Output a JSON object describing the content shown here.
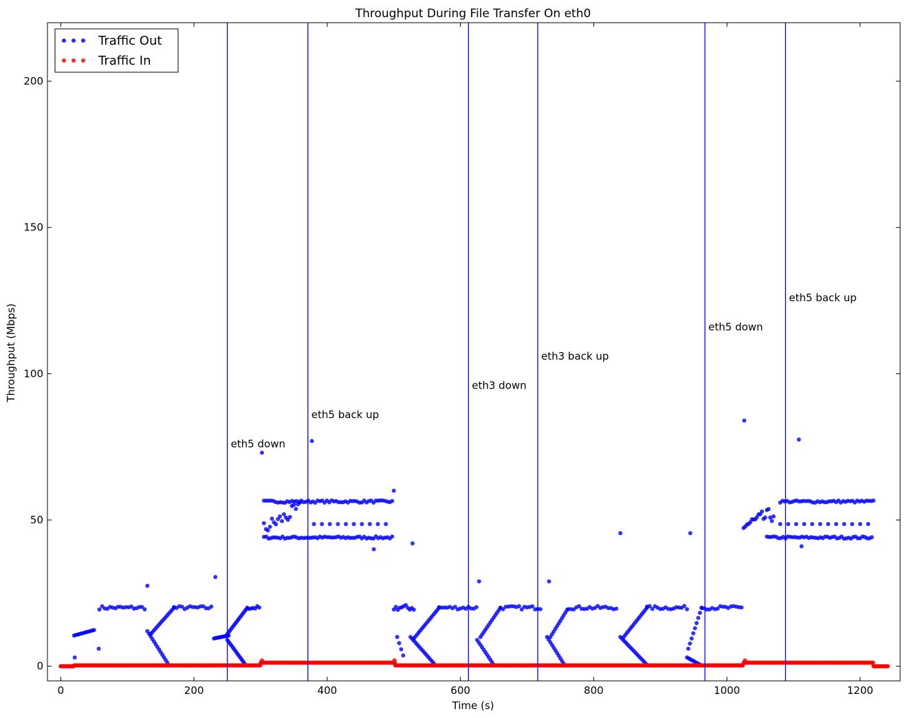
{
  "chart_data": {
    "type": "scatter",
    "title": "Throughput During File Transfer On eth0",
    "xlabel": "Time (s)",
    "ylabel": "Throughput (Mbps)",
    "xlim": [
      -20,
      1260
    ],
    "ylim": [
      -5,
      220
    ],
    "x_ticks": [
      0,
      200,
      400,
      600,
      800,
      1000,
      1200
    ],
    "y_ticks": [
      0,
      50,
      100,
      150,
      200
    ],
    "grid": false,
    "legend_position": "top-left",
    "colors": {
      "traffic_out": "#0000ff",
      "traffic_in": "#ff0000",
      "event_line": "#0000ff"
    },
    "series": [
      {
        "name": "Traffic Out",
        "color": "#0000ff",
        "segments": [
          {
            "x_start": 0,
            "x_end": 18,
            "step": 3,
            "y": 0
          },
          {
            "x_start": 20,
            "x_end": 52,
            "step": 2.5,
            "y_start": 10.5,
            "y_end": 12.5
          },
          {
            "x_start": 58,
            "x_end": 128,
            "step": 4,
            "y": 20,
            "jitter": 0.6
          },
          {
            "x_start": 58,
            "x_end": 128,
            "step": 5,
            "y": 0.3
          },
          {
            "x_start": 130,
            "x_end": 162,
            "step": 2.5,
            "y_start": 12,
            "y_end": 0.5
          },
          {
            "x_start": 135,
            "x_end": 170,
            "step": 2.5,
            "y_start": 11,
            "y_end": 20
          },
          {
            "x_start": 170,
            "x_end": 228,
            "step": 4,
            "y": 20,
            "jitter": 0.6
          },
          {
            "x_start": 162,
            "x_end": 228,
            "step": 5,
            "y": 0.3
          },
          {
            "x_start": 230,
            "x_end": 252,
            "step": 2,
            "y_start": 9.5,
            "y_end": 10.5
          },
          {
            "x_start": 250,
            "x_end": 278,
            "step": 2,
            "y_start": 9,
            "y_end": 0.3
          },
          {
            "x_start": 250,
            "x_end": 280,
            "step": 2,
            "y_start": 11,
            "y_end": 20
          },
          {
            "x_start": 280,
            "x_end": 300,
            "step": 3,
            "y": 20,
            "jitter": 0.6
          },
          {
            "x_start": 305,
            "x_end": 500,
            "step": 3.5,
            "y": 44,
            "jitter": 0.4
          },
          {
            "x_start": 305,
            "x_end": 500,
            "step": 3.5,
            "y": 56.3,
            "jitter": 0.4
          },
          {
            "x_start": 305,
            "x_end": 360,
            "step": 3,
            "y_start": 47,
            "y_end": 54,
            "jitter": 2.5
          },
          {
            "x_start": 380,
            "x_end": 495,
            "step": 12,
            "y": 48.6
          },
          {
            "x_start": 500,
            "x_end": 530,
            "step": 3,
            "y": 20,
            "jitter": 1
          },
          {
            "x_start": 505,
            "x_end": 515,
            "step": 3,
            "y_start": 10,
            "y_end": 3
          },
          {
            "x_start": 525,
            "x_end": 562,
            "step": 2.5,
            "y_start": 10,
            "y_end": 0.5
          },
          {
            "x_start": 530,
            "x_end": 568,
            "step": 2.5,
            "y_start": 9.5,
            "y_end": 20
          },
          {
            "x_start": 568,
            "x_end": 625,
            "step": 4,
            "y": 20,
            "jitter": 0.6
          },
          {
            "x_start": 565,
            "x_end": 625,
            "step": 5,
            "y": 0.3
          },
          {
            "x_start": 625,
            "x_end": 650,
            "step": 2.5,
            "y_start": 9,
            "y_end": 0.5
          },
          {
            "x_start": 630,
            "x_end": 660,
            "step": 2.5,
            "y_start": 10,
            "y_end": 20
          },
          {
            "x_start": 660,
            "x_end": 720,
            "step": 4,
            "y": 20,
            "jitter": 0.6
          },
          {
            "x_start": 650,
            "x_end": 720,
            "step": 5,
            "y": 0.3
          },
          {
            "x_start": 730,
            "x_end": 756,
            "step": 2.5,
            "y_start": 10,
            "y_end": 0.5
          },
          {
            "x_start": 735,
            "x_end": 762,
            "step": 2.5,
            "y_start": 10,
            "y_end": 20
          },
          {
            "x_start": 762,
            "x_end": 835,
            "step": 4,
            "y": 20,
            "jitter": 0.6
          },
          {
            "x_start": 756,
            "x_end": 835,
            "step": 5,
            "y": 0.3
          },
          {
            "x_start": 840,
            "x_end": 880,
            "step": 2.5,
            "y_start": 10,
            "y_end": 0.5
          },
          {
            "x_start": 845,
            "x_end": 880,
            "step": 2.5,
            "y_start": 10,
            "y_end": 20
          },
          {
            "x_start": 880,
            "x_end": 940,
            "step": 4,
            "y": 20,
            "jitter": 0.6
          },
          {
            "x_start": 880,
            "x_end": 940,
            "step": 5,
            "y": 0.3
          },
          {
            "x_start": 940,
            "x_end": 960,
            "step": 2.5,
            "y_start": 3,
            "y_end": 0.5
          },
          {
            "x_start": 942,
            "x_end": 962,
            "step": 2.5,
            "y_start": 6,
            "y_end": 20
          },
          {
            "x_start": 962,
            "x_end": 1022,
            "step": 4,
            "y": 20,
            "jitter": 0.6
          },
          {
            "x_start": 962,
            "x_end": 1022,
            "step": 5,
            "y": 0.3
          },
          {
            "x_start": 1025,
            "x_end": 1070,
            "step": 2.5,
            "y_start": 48,
            "y_end": 52,
            "jitter": 2.5
          },
          {
            "x_start": 1060,
            "x_end": 1220,
            "step": 3.5,
            "y": 44,
            "jitter": 0.4
          },
          {
            "x_start": 1080,
            "x_end": 1220,
            "step": 3.5,
            "y": 56.3,
            "jitter": 0.4
          },
          {
            "x_start": 1080,
            "x_end": 1220,
            "step": 12,
            "y": 48.6
          }
        ],
        "outliers": [
          {
            "x": 21,
            "y": 3
          },
          {
            "x": 57,
            "y": 6
          },
          {
            "x": 130,
            "y": 27.5
          },
          {
            "x": 232,
            "y": 30.5
          },
          {
            "x": 302,
            "y": 73
          },
          {
            "x": 377,
            "y": 77
          },
          {
            "x": 470,
            "y": 40
          },
          {
            "x": 500,
            "y": 60
          },
          {
            "x": 528,
            "y": 42
          },
          {
            "x": 628,
            "y": 29
          },
          {
            "x": 733,
            "y": 29
          },
          {
            "x": 840,
            "y": 45.5
          },
          {
            "x": 945,
            "y": 45.5
          },
          {
            "x": 1026,
            "y": 84
          },
          {
            "x": 1108,
            "y": 77.5
          },
          {
            "x": 1112,
            "y": 41
          }
        ]
      },
      {
        "name": "Traffic In",
        "color": "#ff0000",
        "segments": [
          {
            "x_start": 0,
            "x_end": 20,
            "step": 1.2,
            "y": 0
          },
          {
            "x_start": 20,
            "x_end": 300,
            "step": 1.2,
            "y": 0.3
          },
          {
            "x_start": 300,
            "x_end": 502,
            "step": 1.2,
            "y": 1.2
          },
          {
            "x_start": 502,
            "x_end": 1025,
            "step": 1.2,
            "y": 0.3
          },
          {
            "x_start": 1025,
            "x_end": 1220,
            "step": 1.2,
            "y": 1.2
          },
          {
            "x_start": 1220,
            "x_end": 1242,
            "step": 1.2,
            "y": 0
          }
        ],
        "outliers": [
          {
            "x": 302,
            "y": 2
          },
          {
            "x": 501,
            "y": 2
          },
          {
            "x": 1027,
            "y": 2
          }
        ]
      }
    ],
    "event_lines": [
      {
        "x": 250,
        "label": "eth5 down",
        "label_y": 76
      },
      {
        "x": 371,
        "label": "eth5 back up",
        "label_y": 86
      },
      {
        "x": 612,
        "label": "eth3 down",
        "label_y": 96
      },
      {
        "x": 716,
        "label": "eth3 back up",
        "label_y": 106
      },
      {
        "x": 967,
        "label": "eth5 down",
        "label_y": 116
      },
      {
        "x": 1088,
        "label": "eth5 back up",
        "label_y": 126
      }
    ]
  }
}
